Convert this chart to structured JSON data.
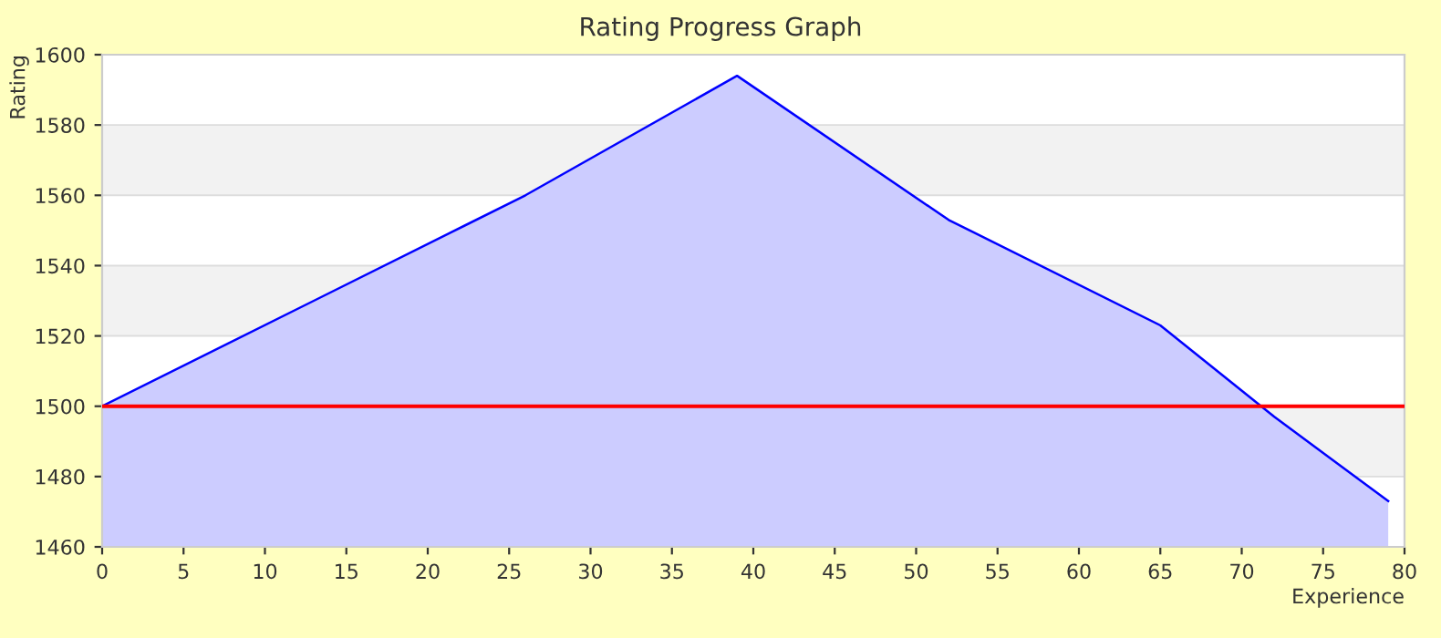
{
  "chart_data": {
    "type": "area",
    "title": "Rating Progress Graph",
    "xlabel": "Experience",
    "ylabel": "Rating",
    "x": [
      0,
      13,
      26,
      39,
      52,
      65,
      72,
      79
    ],
    "series": [
      {
        "color": "#0000ff",
        "values": [
          1500,
          1530,
          1560,
          1594,
          1553,
          1523,
          1497,
          1473
        ]
      }
    ],
    "xlim": [
      0,
      80
    ],
    "xticks": [
      0,
      5,
      10,
      15,
      20,
      25,
      30,
      35,
      40,
      45,
      50,
      55,
      60,
      65,
      70,
      75,
      80
    ],
    "ylim": [
      1460,
      1600
    ],
    "yticks": [
      1460,
      1480,
      1500,
      1520,
      1540,
      1560,
      1580,
      1600
    ],
    "grid": "y",
    "legend": false,
    "ref_lines": [
      {
        "axis": "y",
        "value": 1500,
        "color": "#ff0000"
      }
    ],
    "bands": [
      {
        "axis": "y",
        "from": 1480,
        "to": 1500,
        "color": "#f2f2f2"
      },
      {
        "axis": "y",
        "from": 1520,
        "to": 1540,
        "color": "#f2f2f2"
      },
      {
        "axis": "y",
        "from": 1560,
        "to": 1580,
        "color": "#f2f2f2"
      }
    ]
  }
}
